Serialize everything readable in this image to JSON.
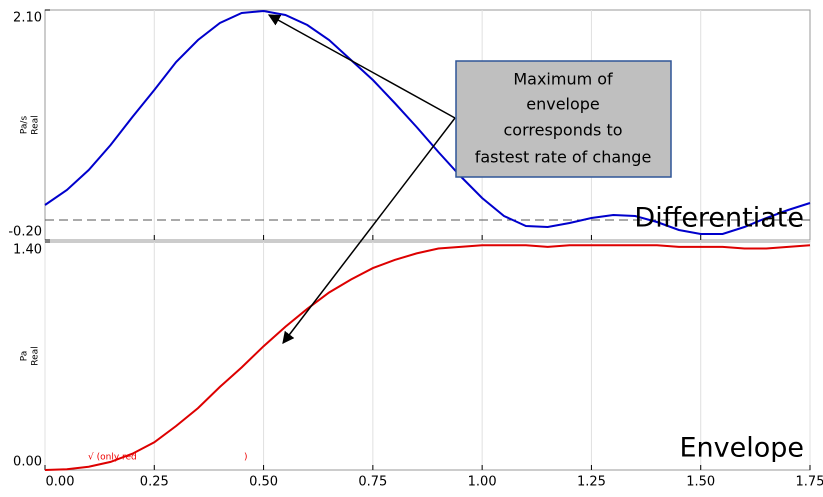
{
  "chart_data": [
    {
      "type": "line",
      "annotation": "Differentiate",
      "y_label": [
        "Pa/s",
        "Real"
      ],
      "x": [
        0,
        0.05,
        0.1,
        0.15,
        0.2,
        0.25,
        0.3,
        0.35,
        0.4,
        0.45,
        0.5,
        0.55,
        0.6,
        0.65,
        0.7,
        0.75,
        0.8,
        0.85,
        0.9,
        0.95,
        1.0,
        1.05,
        1.1,
        1.15,
        1.2,
        1.25,
        1.3,
        1.35,
        1.4,
        1.45,
        1.5,
        1.55,
        1.6,
        1.65,
        1.7,
        1.75
      ],
      "series": [
        {
          "color": "#0000cc",
          "values": [
            0.15,
            0.3,
            0.5,
            0.75,
            1.03,
            1.3,
            1.58,
            1.8,
            1.97,
            2.07,
            2.09,
            2.05,
            1.95,
            1.8,
            1.6,
            1.4,
            1.17,
            0.93,
            0.68,
            0.44,
            0.22,
            0.04,
            -0.06,
            -0.07,
            -0.03,
            0.02,
            0.05,
            0.04,
            -0.02,
            -0.1,
            -0.14,
            -0.14,
            -0.07,
            0.02,
            0.1,
            0.17
          ]
        }
      ],
      "reference_line": 0,
      "xlim": [
        0,
        1.75
      ],
      "xticks": [
        0.25,
        0.5,
        0.75,
        1.0,
        1.25,
        1.5
      ],
      "ylim": [
        -0.2,
        2.1
      ],
      "yticks": [
        {
          "value": 2.1,
          "label": "2.10"
        },
        {
          "value": -0.2,
          "label": "-0.20"
        }
      ],
      "grid": true
    },
    {
      "type": "line",
      "annotation": "Envelope",
      "y_label": [
        "Pa",
        "Real"
      ],
      "notes": [
        "√ (only red",
        ")"
      ],
      "x": [
        0,
        0.05,
        0.1,
        0.15,
        0.2,
        0.25,
        0.3,
        0.35,
        0.4,
        0.45,
        0.5,
        0.55,
        0.6,
        0.65,
        0.7,
        0.75,
        0.8,
        0.85,
        0.9,
        0.95,
        1.0,
        1.05,
        1.1,
        1.15,
        1.2,
        1.25,
        1.3,
        1.35,
        1.4,
        1.45,
        1.5,
        1.55,
        1.6,
        1.65,
        1.7,
        1.75
      ],
      "series": [
        {
          "color": "#dd0000",
          "values": [
            0,
            0.005,
            0.02,
            0.05,
            0.1,
            0.17,
            0.27,
            0.38,
            0.51,
            0.63,
            0.76,
            0.88,
            0.99,
            1.09,
            1.17,
            1.24,
            1.29,
            1.33,
            1.36,
            1.37,
            1.38,
            1.38,
            1.38,
            1.37,
            1.38,
            1.38,
            1.38,
            1.38,
            1.38,
            1.37,
            1.37,
            1.37,
            1.36,
            1.36,
            1.37,
            1.38
          ]
        }
      ],
      "xlim": [
        0,
        1.75
      ],
      "xticks": [
        {
          "value": 0,
          "label": "0.00"
        },
        {
          "value": 0.25,
          "label": "0.25"
        },
        {
          "value": 0.5,
          "label": "0.50"
        },
        {
          "value": 0.75,
          "label": "0.75"
        },
        {
          "value": 1.0,
          "label": "1.00"
        },
        {
          "value": 1.25,
          "label": "1.25"
        },
        {
          "value": 1.5,
          "label": "1.50"
        },
        {
          "value": 1.75,
          "label": "1.75"
        }
      ],
      "ylim": [
        0,
        1.4
      ],
      "yticks": [
        {
          "value": 1.4,
          "label": "1.40"
        },
        {
          "value": 0,
          "label": "0.00"
        }
      ],
      "grid": true
    }
  ],
  "callout": [
    "Maximum of",
    "envelope",
    "corresponds to",
    "fastest rate of change"
  ]
}
